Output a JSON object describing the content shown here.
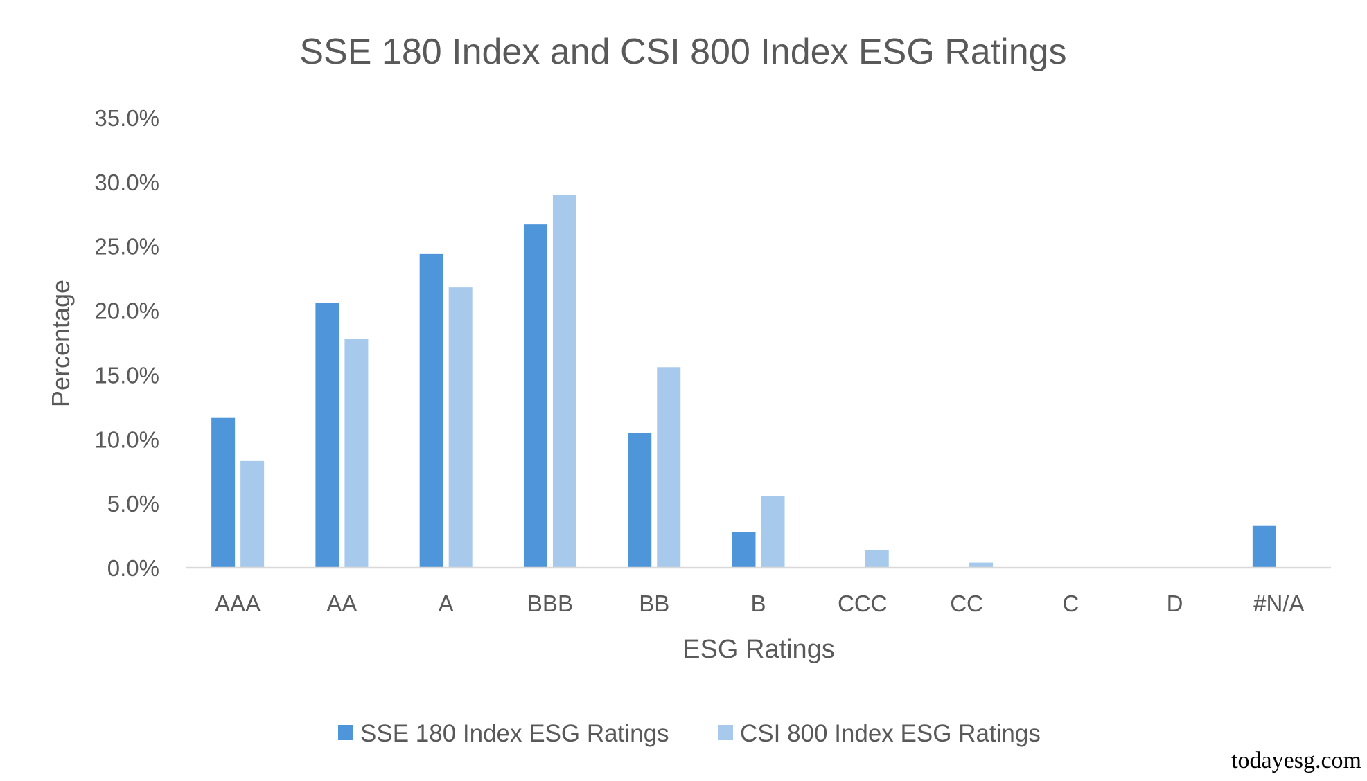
{
  "chart_data": {
    "type": "bar",
    "title": "SSE 180 Index and CSI 800 Index ESG Ratings",
    "xlabel": "ESG Ratings",
    "ylabel": "Percentage",
    "ylim": [
      0,
      35
    ],
    "yticks": [
      "0.0%",
      "5.0%",
      "10.0%",
      "15.0%",
      "20.0%",
      "25.0%",
      "30.0%",
      "35.0%"
    ],
    "grid": false,
    "legend_position": "bottom",
    "categories": [
      "AAA",
      "AA",
      "A",
      "BBB",
      "BB",
      "B",
      "CCC",
      "CC",
      "C",
      "D",
      "#N/A"
    ],
    "series": [
      {
        "name": "SSE 180 Index ESG Ratings",
        "color": "#4f95d9",
        "values": [
          11.7,
          20.6,
          24.4,
          26.7,
          10.5,
          2.8,
          0,
          0,
          0,
          0,
          3.3
        ]
      },
      {
        "name": "CSI 800 Index ESG Ratings",
        "color": "#a7caec",
        "values": [
          8.3,
          17.8,
          21.8,
          29.0,
          15.6,
          5.6,
          1.4,
          0.4,
          0,
          0,
          0
        ]
      }
    ]
  },
  "watermark": "todayesg.com"
}
